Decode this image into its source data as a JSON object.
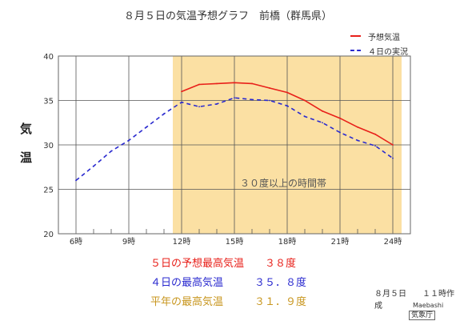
{
  "page": {
    "title": "８月５日の気温予想グラフ　前橋（群馬県）",
    "ylabel_chars": [
      "気",
      "温"
    ],
    "summary": [
      {
        "text": "５日の予想最高気温　　３８度",
        "color": "#e8201a"
      },
      {
        "text": "４日の最高気温　　　３５．８度",
        "color": "#2a2acf"
      },
      {
        "text": "平年の最高気温　　　３１．９度",
        "color": "#c8961e"
      }
    ],
    "footer": {
      "created": "８月５日　　１１時作成",
      "city": "Maebashi",
      "agency": "気象庁"
    }
  },
  "chart_data": {
    "type": "line",
    "x_range": [
      6,
      24
    ],
    "ylim": [
      20,
      40
    ],
    "y_ticks": [
      20,
      25,
      30,
      35,
      40
    ],
    "y_tick_labels": [
      "20",
      "25",
      "30",
      "35",
      "40"
    ],
    "x_ticks": [
      6,
      9,
      12,
      15,
      18,
      21,
      24
    ],
    "x_tick_labels": [
      "6時",
      "9時",
      "12時",
      "15時",
      "18時",
      "21時",
      "24時"
    ],
    "x_minor_ticks": [
      7,
      8,
      10,
      11,
      13,
      14,
      16,
      17,
      19,
      20,
      22,
      23
    ],
    "grid": true,
    "legend_position": "top-right",
    "highlight_band": {
      "x": [
        11.5,
        24.5
      ],
      "label": "３０度以上の時間帯",
      "color": "#fbe0a3"
    },
    "series": [
      {
        "name": "予想気温",
        "style": "solid",
        "color": "#e8201a",
        "x": [
          12,
          13,
          14,
          15,
          16,
          17,
          18,
          19,
          20,
          21,
          22,
          23,
          24
        ],
        "y": [
          36.0,
          36.8,
          36.9,
          37.0,
          36.9,
          36.4,
          35.9,
          35.0,
          33.8,
          33.0,
          32.0,
          31.2,
          30.0
        ]
      },
      {
        "name": "４日の実況",
        "style": "dashed",
        "color": "#2a2acf",
        "x": [
          6,
          7,
          8,
          9,
          10,
          11,
          12,
          13,
          14,
          15,
          16,
          17,
          18,
          19,
          20,
          21,
          22,
          23,
          24
        ],
        "y": [
          26.0,
          27.6,
          29.3,
          30.5,
          32.0,
          33.5,
          34.8,
          34.3,
          34.6,
          35.3,
          35.1,
          35.0,
          34.4,
          33.2,
          32.5,
          31.4,
          30.5,
          29.9,
          28.5
        ]
      }
    ]
  }
}
